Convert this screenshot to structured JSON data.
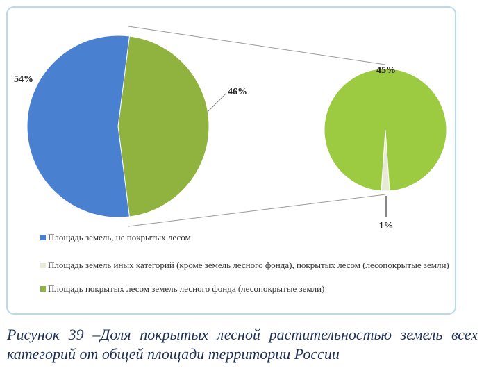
{
  "chart_data": {
    "type": "pie",
    "categories": [
      "Площадь земель, не покрытых лесом",
      "Площадь земель иных категорий (кроме земель лесного фонда), покрытых лесом (лесопокрытые земли)",
      "Площадь покрытых лесом земель лесного фонда (лесопокрытые земли)"
    ],
    "colors": [
      "#4a80d0",
      "#e6ead6",
      "#8fb33e"
    ],
    "main": {
      "values": [
        54,
        46
      ],
      "value_labels": [
        "54%",
        "46%"
      ],
      "colors": [
        "#4a80d0",
        "#8fb33e"
      ]
    },
    "detail": {
      "values": [
        45,
        1
      ],
      "value_labels": [
        "45%",
        "1%"
      ],
      "colors": [
        "#9ccb42",
        "#e6ead6"
      ]
    }
  },
  "caption": "Рисунок 39 –Доля покрытых лесной растительностью земель всех категорий от общей площади территории России"
}
